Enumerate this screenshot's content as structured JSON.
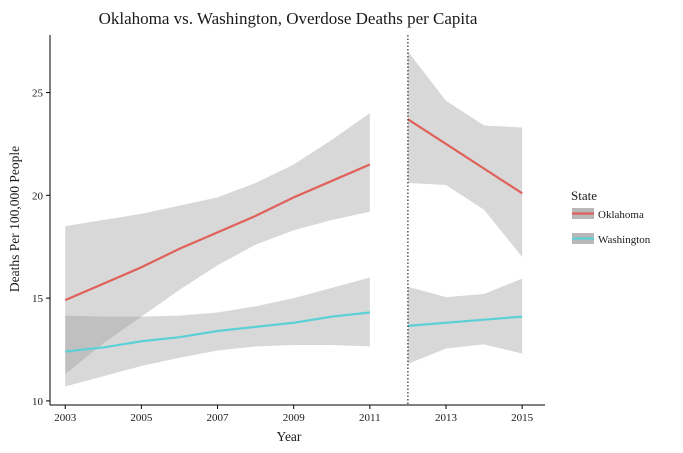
{
  "chart_data": {
    "type": "line",
    "title": "Oklahoma vs. Washington, Overdose Deaths per Capita",
    "xlabel": "Year",
    "ylabel": "Deaths Per 100,000 People",
    "xlim": [
      2002.6,
      2015.6
    ],
    "ylim": [
      9.8,
      27.8
    ],
    "x_ticks": [
      2003,
      2005,
      2007,
      2009,
      2011,
      2013,
      2015
    ],
    "y_ticks": [
      10,
      15,
      20,
      25
    ],
    "grid": false,
    "legend_position": "right",
    "legend_title": "State",
    "vline": {
      "x": 2012,
      "style": "dotted"
    },
    "series": [
      {
        "name": "Oklahoma",
        "color": "#e0605a",
        "segments": [
          {
            "x": [
              2003,
              2004,
              2005,
              2006,
              2007,
              2008,
              2009,
              2010,
              2011
            ],
            "y": [
              14.9,
              15.7,
              16.5,
              17.4,
              18.2,
              19.0,
              19.9,
              20.7,
              21.5
            ],
            "lower": [
              11.3,
              12.8,
              14.1,
              15.4,
              16.6,
              17.6,
              18.3,
              18.8,
              19.2
            ],
            "upper": [
              18.5,
              18.8,
              19.1,
              19.5,
              19.9,
              20.6,
              21.5,
              22.7,
              24.0
            ]
          },
          {
            "x": [
              2012,
              2013,
              2014,
              2015
            ],
            "y": [
              23.7,
              22.5,
              21.3,
              20.1
            ],
            "lower": [
              20.6,
              20.5,
              19.3,
              17.0
            ],
            "upper": [
              27.0,
              24.6,
              23.4,
              23.3
            ]
          }
        ]
      },
      {
        "name": "Washington",
        "color": "#5bd0d6",
        "segments": [
          {
            "x": [
              2003,
              2004,
              2005,
              2006,
              2007,
              2008,
              2009,
              2010,
              2011
            ],
            "y": [
              12.4,
              12.6,
              12.9,
              13.1,
              13.4,
              13.6,
              13.8,
              14.1,
              14.3
            ],
            "lower": [
              10.7,
              11.2,
              11.7,
              12.1,
              12.45,
              12.65,
              12.72,
              12.72,
              12.65
            ],
            "upper": [
              14.15,
              14.1,
              14.1,
              14.15,
              14.3,
              14.6,
              15.0,
              15.5,
              16.0
            ]
          },
          {
            "x": [
              2012,
              2013,
              2014,
              2015
            ],
            "y": [
              13.65,
              13.8,
              13.95,
              14.1
            ],
            "lower": [
              11.8,
              12.55,
              12.75,
              12.3
            ],
            "upper": [
              15.55,
              15.05,
              15.2,
              15.95
            ]
          }
        ]
      }
    ]
  }
}
